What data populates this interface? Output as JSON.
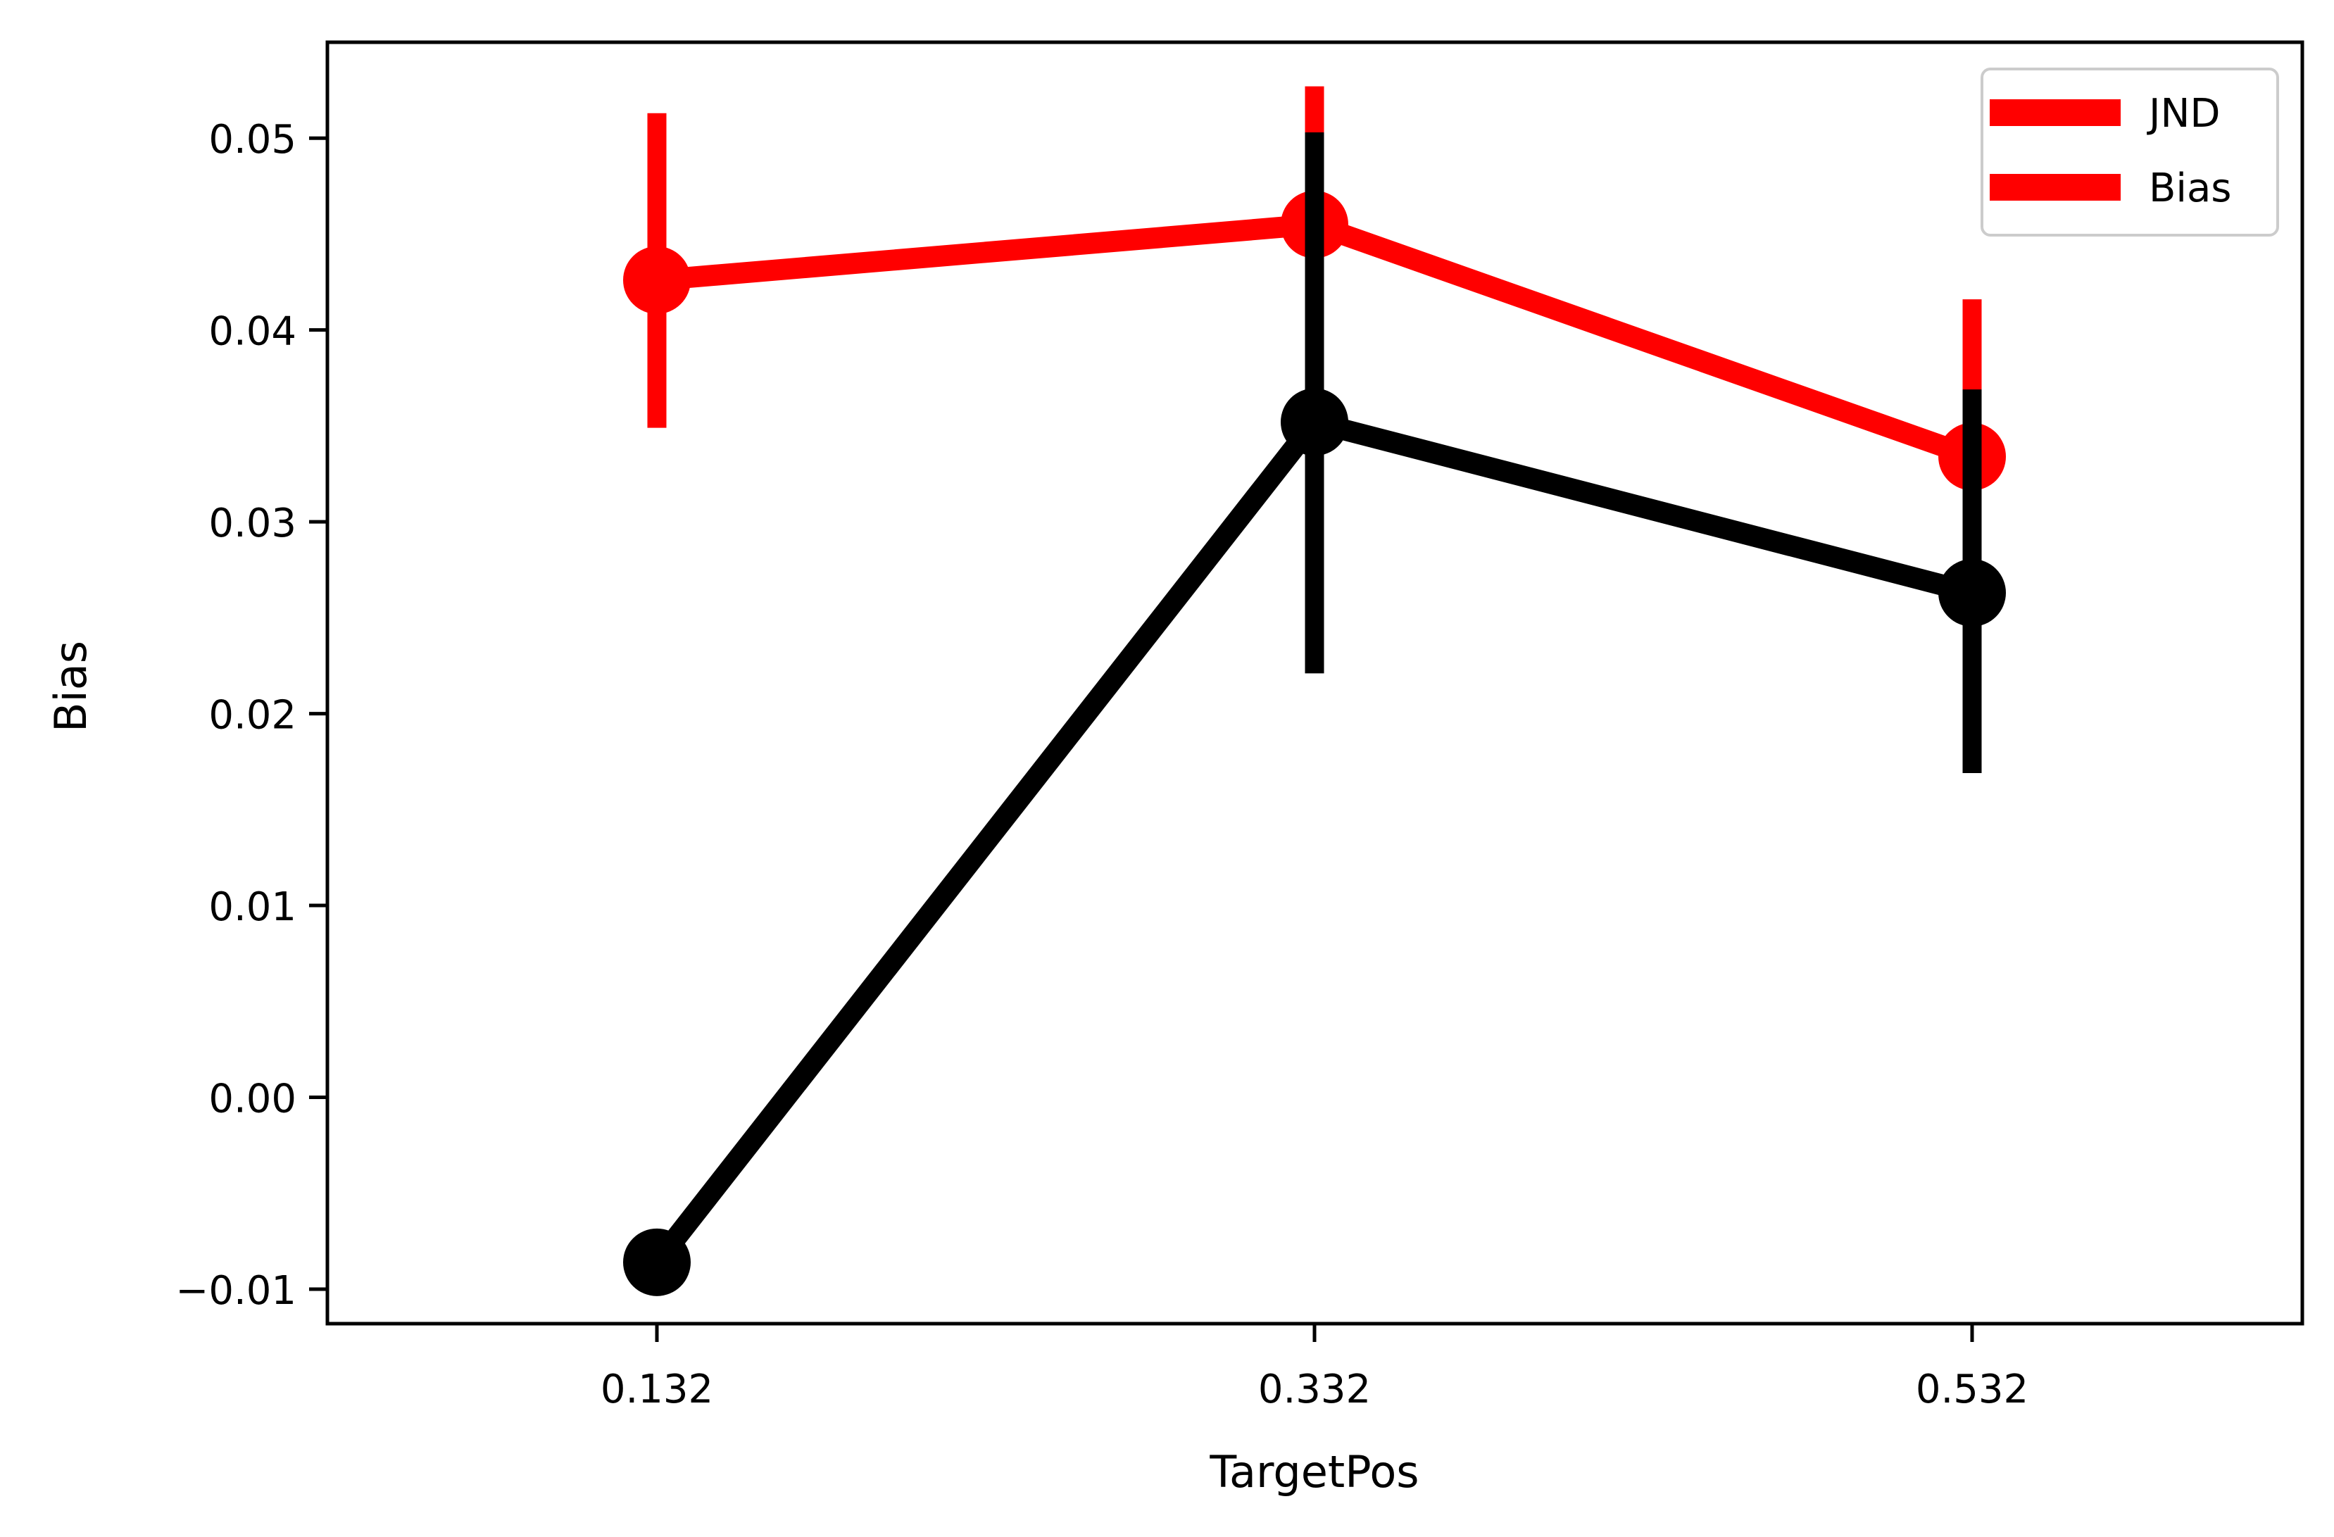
{
  "chart_data": {
    "type": "line",
    "title": "",
    "xlabel": "TargetPos",
    "ylabel": "Bias",
    "categories": [
      "0.132",
      "0.332",
      "0.532"
    ],
    "ylim": [
      -0.0118,
      0.055
    ],
    "yticks": [
      -0.01,
      0.0,
      0.01,
      0.02,
      0.03,
      0.04,
      0.05
    ],
    "ytick_labels": [
      "−0.01",
      "0.00",
      "0.01",
      "0.02",
      "0.03",
      "0.04",
      "0.05"
    ],
    "grid": false,
    "legend_position": "top-right",
    "legend": [
      {
        "label": "JND",
        "color": "#ff0000"
      },
      {
        "label": "Bias",
        "color": "#ff0000"
      }
    ],
    "series": [
      {
        "color": "#ff0000",
        "values": [
          0.0426,
          0.0455,
          0.0334
        ],
        "err_low": [
          0.0349,
          null,
          null
        ],
        "err_high": [
          0.0513,
          0.0527,
          0.0416
        ]
      },
      {
        "color": "#000000",
        "values": [
          -0.0086,
          0.0352,
          0.0263
        ],
        "err_low": [
          null,
          0.0221,
          0.0169
        ],
        "err_high": [
          null,
          0.0503,
          0.0369
        ]
      }
    ]
  }
}
